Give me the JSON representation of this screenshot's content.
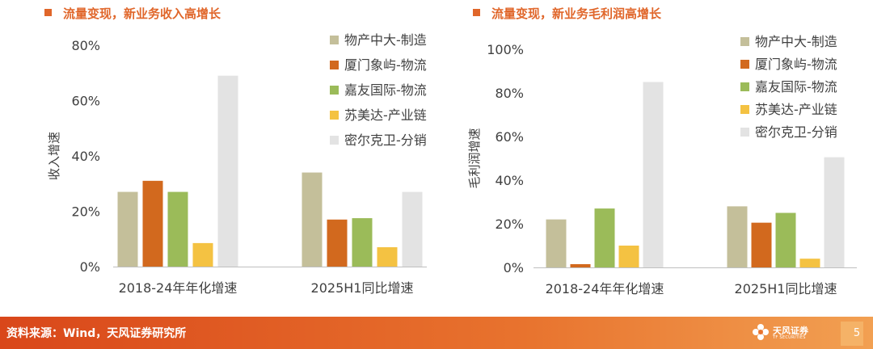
{
  "source": "资料来源：Wind，天风证券研究所",
  "page_number": "5",
  "logo": {
    "name": "天风证券",
    "sub": "TF SECURITIES"
  },
  "colors": {
    "accent": "#e0662a",
    "series": [
      "#c4bf9a",
      "#d2691e",
      "#9bbb59",
      "#f4c242",
      "#e3e3e3"
    ]
  },
  "chart_data": [
    {
      "type": "bar",
      "title": "流量变现，新业务收入高增长",
      "ylabel": "收入增速",
      "categories": [
        "2018-24年年化增速",
        "2025H1同比增速"
      ],
      "ylim": [
        0,
        80
      ],
      "yticks": [
        "0%",
        "20%",
        "40%",
        "60%",
        "80%"
      ],
      "tick_values": [
        0,
        20,
        40,
        60,
        80
      ],
      "legend_position": "top-right",
      "grid": false,
      "series": [
        {
          "name": "物产中大-制造",
          "values": [
            27,
            34
          ]
        },
        {
          "name": "厦门象屿-物流",
          "values": [
            31,
            17
          ]
        },
        {
          "name": "嘉友国际-物流",
          "values": [
            27,
            17.5
          ]
        },
        {
          "name": "苏美达-产业链",
          "values": [
            8.5,
            7
          ]
        },
        {
          "name": "密尔克卫-分销",
          "values": [
            69,
            27
          ]
        }
      ]
    },
    {
      "type": "bar",
      "title": "流量变现，新业务毛利润高增长",
      "ylabel": "毛利润增速",
      "categories": [
        "2018-24年年化增速",
        "2025H1同比增速"
      ],
      "ylim": [
        0,
        100
      ],
      "yticks": [
        "0%",
        "20%",
        "40%",
        "60%",
        "80%",
        "100%"
      ],
      "tick_values": [
        0,
        20,
        40,
        60,
        80,
        100
      ],
      "legend_position": "top-right",
      "grid": false,
      "series": [
        {
          "name": "物产中大-制造",
          "values": [
            22,
            28
          ]
        },
        {
          "name": "厦门象屿-物流",
          "values": [
            1.5,
            20.5
          ]
        },
        {
          "name": "嘉友国际-物流",
          "values": [
            27,
            25
          ]
        },
        {
          "name": "苏美达-产业链",
          "values": [
            10,
            4
          ]
        },
        {
          "name": "密尔克卫-分销",
          "values": [
            85,
            50.5
          ]
        }
      ]
    }
  ]
}
